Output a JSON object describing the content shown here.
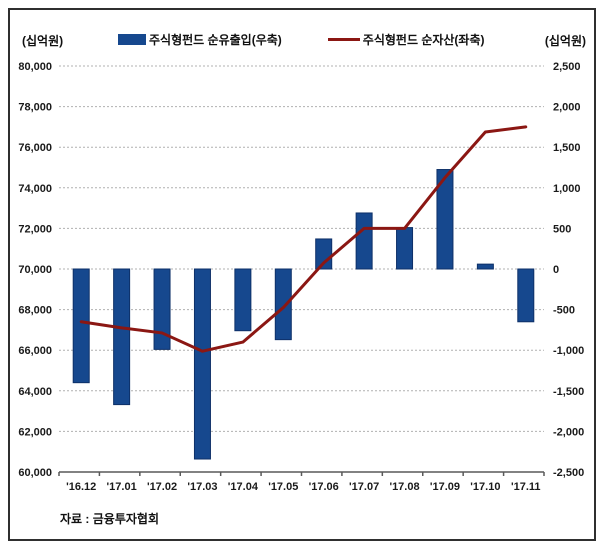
{
  "header": {
    "left_unit": "(십억원)",
    "right_unit": "(십억원)"
  },
  "legend": {
    "items": [
      {
        "label": "주식형펀드 순유출입(우축)",
        "marker": "bar-swatch",
        "color": "#16488e"
      },
      {
        "label": "주식형펀드 순자산(좌축)",
        "marker": "line-swatch",
        "color": "#8b1713"
      }
    ]
  },
  "footer": {
    "source": "자료 : 금융투자협회"
  },
  "colors": {
    "bar_fill": "#16488e",
    "bar_border": "#0e3068",
    "line": "#8b1713",
    "grid": "#b0b0b0",
    "axis": "#595959",
    "tick_text": "#1a1a1a",
    "negative_tick_text": "#b00000"
  },
  "chart_data": {
    "type": "bar",
    "subtype": "combo bar+line, dual axis",
    "categories": [
      "'16.12",
      "'17.01",
      "'17.02",
      "'17.03",
      "'17.04",
      "'17.05",
      "'17.06",
      "'17.07",
      "'17.08",
      "'17.09",
      "'17.10",
      "'17.11"
    ],
    "series": [
      {
        "name": "주식형펀드 순유출입(우축)",
        "type": "bar",
        "axis": "right",
        "values": [
          -1400,
          -1670,
          -990,
          -2340,
          -760,
          -870,
          370,
          690,
          510,
          1225,
          60,
          -650
        ]
      },
      {
        "name": "주식형펀드 순자산(좌축)",
        "type": "line",
        "axis": "left",
        "values": [
          67400,
          67100,
          66850,
          65950,
          66400,
          68100,
          70300,
          72000,
          72000,
          74500,
          76750,
          77000
        ]
      }
    ],
    "left_axis": {
      "unit": "(십억원)",
      "min": 60000,
      "max": 80000,
      "tick_step": 2000,
      "tick_labels": [
        "80,000",
        "78,000",
        "76,000",
        "74,000",
        "72,000",
        "70,000",
        "68,000",
        "66,000",
        "64,000",
        "62,000",
        "60,000"
      ]
    },
    "right_axis": {
      "unit": "(십억원)",
      "min": -2500,
      "max": 2500,
      "tick_step": 500,
      "tick_labels": [
        "2,500",
        "2,000",
        "1,500",
        "1,000",
        "500",
        "0",
        "-500",
        "-1,000",
        "-1,500",
        "-2,000",
        "-2,500"
      ]
    },
    "grid": "horizontal dotted",
    "legend_position": "top",
    "source": "자료 : 금융투자협회"
  }
}
